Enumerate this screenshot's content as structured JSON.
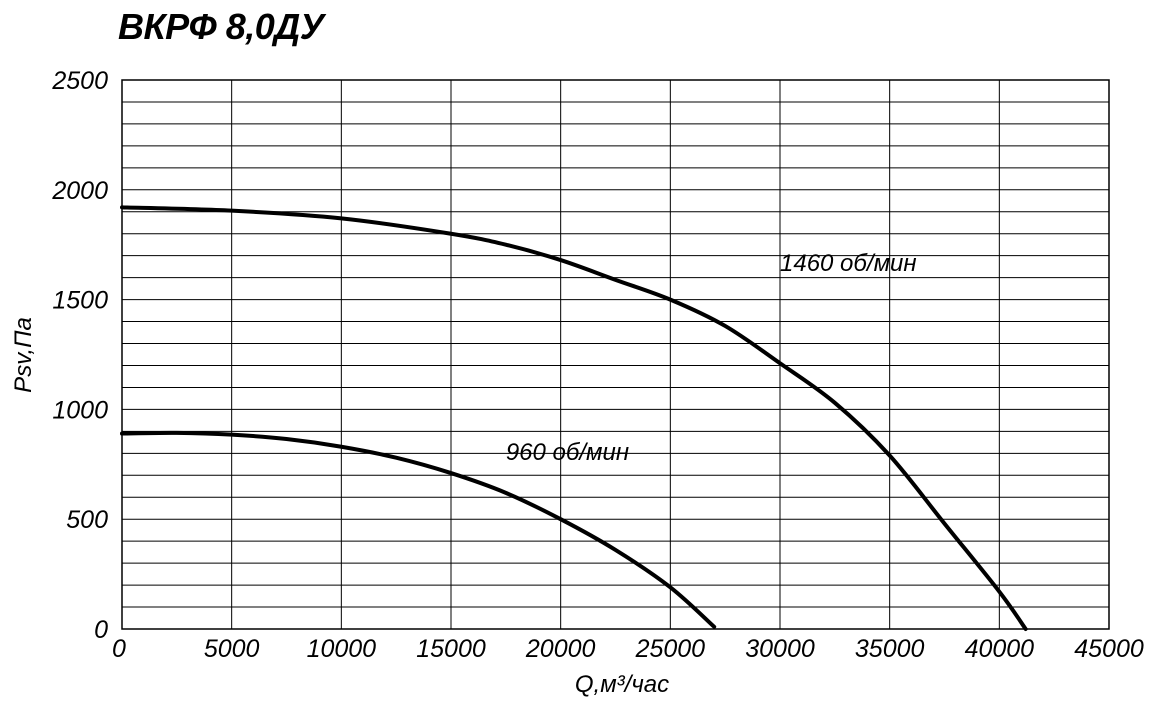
{
  "title": "ВКРФ 8,0ДУ",
  "chart_data": {
    "type": "line",
    "title": "ВКРФ 8,0ДУ",
    "xlabel": "Q,м³/час",
    "ylabel": "Psv,Па",
    "xlim": [
      0,
      45000
    ],
    "ylim": [
      0,
      2500
    ],
    "x_ticks": [
      "0",
      "5000",
      "10000",
      "15000",
      "20000",
      "25000",
      "30000",
      "35000",
      "40000",
      "45000"
    ],
    "y_ticks": [
      "0",
      "500",
      "1000",
      "1500",
      "2000",
      "2500"
    ],
    "grid": true,
    "series": [
      {
        "name": "1460 об/мин",
        "x": [
          0,
          5000,
          10000,
          15000,
          17500,
          20000,
          22500,
          25000,
          27500,
          30000,
          32500,
          35000,
          37500,
          40000,
          41200
        ],
        "y": [
          1920,
          1905,
          1870,
          1800,
          1750,
          1680,
          1590,
          1500,
          1380,
          1210,
          1030,
          790,
          480,
          170,
          0
        ]
      },
      {
        "name": "960 об/мин",
        "x": [
          0,
          2500,
          5000,
          7500,
          10000,
          12500,
          15000,
          17500,
          20000,
          22500,
          25000,
          27000
        ],
        "y": [
          890,
          893,
          885,
          865,
          830,
          780,
          710,
          620,
          500,
          360,
          190,
          10
        ]
      }
    ]
  }
}
